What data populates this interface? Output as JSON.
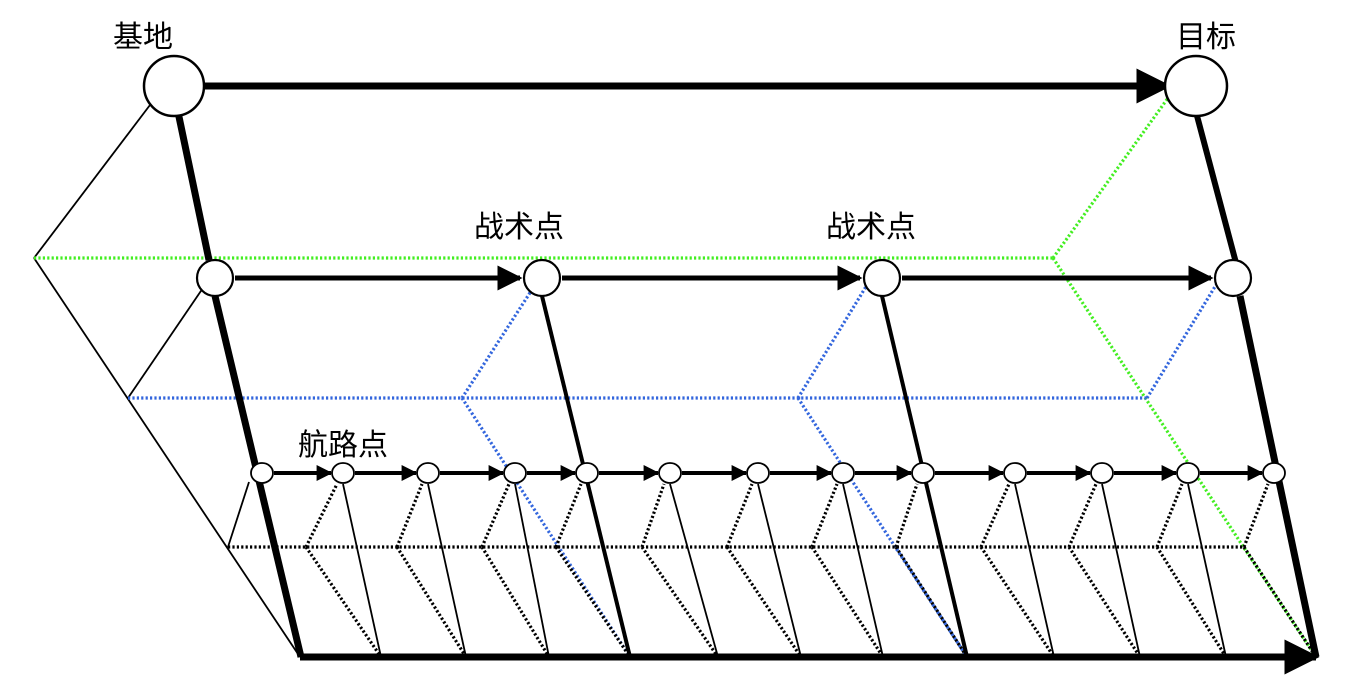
{
  "labels": {
    "base": "基地",
    "target": "目标",
    "tactical_1": "战术点",
    "tactical_2": "战术点",
    "waypoint": "航路点"
  },
  "colors": {
    "line": "#000000",
    "green_dotted": "#44ee22",
    "blue_dotted": "#3366dd",
    "black_dotted": "#000000",
    "node_fill": "#ffffff"
  }
}
